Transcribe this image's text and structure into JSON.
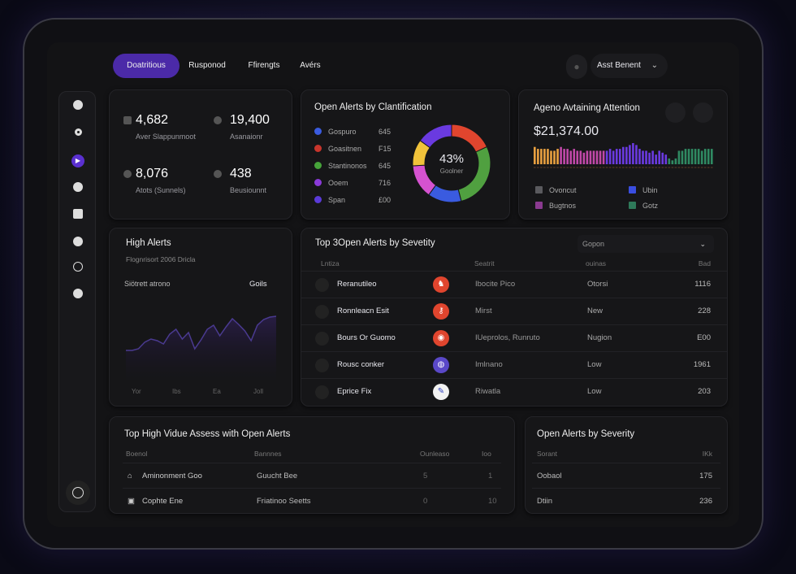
{
  "nav": {
    "tabs": [
      "Doatritious",
      "Rusponod",
      "Ffirengts",
      "Avérs"
    ],
    "active": 0,
    "user": "Asst Benent"
  },
  "stats": [
    {
      "value": "4,682",
      "label": "Aver Slappunmoot"
    },
    {
      "value": "19,400",
      "label": "Asanaionr"
    },
    {
      "value": "8,076",
      "label": "Atots (Sunnels)"
    },
    {
      "value": "438",
      "label": "Beusiounnt"
    }
  ],
  "classification": {
    "title": "Open Alerts by Clantification",
    "center_value": "43%",
    "center_label": "Goolner",
    "items": [
      {
        "label": "Gospuro",
        "value": "645",
        "color": "#3a5be0"
      },
      {
        "label": "Goasitnen",
        "value": "F15",
        "color": "#c8352c"
      },
      {
        "label": "Stantinonos",
        "value": "645",
        "color": "#46a33a"
      },
      {
        "label": "Ooem",
        "value": "716",
        "color": "#8a3ad8"
      },
      {
        "label": "Span",
        "value": "£00",
        "color": "#5a3ad8"
      }
    ],
    "segments": [
      {
        "color": "#e0452e",
        "pct": 18
      },
      {
        "color": "#50a040",
        "pct": 28
      },
      {
        "color": "#3a5be0",
        "pct": 14
      },
      {
        "color": "#d552d0",
        "pct": 14
      },
      {
        "color": "#f0c23a",
        "pct": 11
      },
      {
        "color": "#6a3ae0",
        "pct": 15
      }
    ]
  },
  "agents": {
    "title": "Ageno Avtaining Attention",
    "amount": "$21,374.00",
    "bars": [
      9,
      8,
      8,
      8,
      8,
      7,
      7,
      8,
      9,
      8,
      8,
      7,
      8,
      7,
      7,
      6,
      7,
      7,
      7,
      7,
      7,
      7,
      7,
      8,
      7,
      8,
      8,
      9,
      9,
      10,
      11,
      10,
      8,
      7,
      7,
      6,
      7,
      5,
      7,
      6,
      5,
      3,
      2,
      3,
      7,
      7,
      8,
      8,
      8,
      8,
      8,
      7,
      8,
      8,
      8
    ],
    "legend": [
      {
        "label": "Ovoncut",
        "color": "#5a5a5e"
      },
      {
        "label": "Ubin",
        "color": "#3a4ee0"
      },
      {
        "label": "Bugtnos",
        "color": "#8a3a90"
      },
      {
        "label": "Gotz",
        "color": "#2f7a5a"
      }
    ]
  },
  "high_alerts": {
    "title": "High Alerts",
    "subtitle": "Flognrisort 2006 Dricla",
    "left_label": "Siötrett atrono",
    "right_label": "Goils",
    "x_labels": [
      "Yor",
      "Ibs",
      "Ea",
      "Joll"
    ],
    "values": [
      3,
      3,
      3.2,
      4,
      4.4,
      4.2,
      3.8,
      5,
      5.6,
      4.4,
      5.2,
      3.2,
      4.3,
      5.6,
      6.1,
      4.8,
      5.9,
      6.9,
      6.2,
      5.4,
      4.2,
      6.1,
      6.8,
      7.1,
      7.2
    ]
  },
  "severity_table": {
    "title": "Top 3Open Alerts by Sevetity",
    "filter": "Gopon",
    "headers": [
      "Lntiza",
      "Seatrit",
      "ouinas",
      "Bad"
    ],
    "rows": [
      {
        "name": "Reranutileo",
        "icon_color": "#e0452e",
        "icon": "♞",
        "source": "Ibocite Pico",
        "status": "Otorsi",
        "count": "1116"
      },
      {
        "name": "Ronnleacn Esit",
        "icon_color": "#e0452e",
        "icon": "⚷",
        "source": "Mirst",
        "status": "New",
        "count": "228"
      },
      {
        "name": "Bours Or Guomo",
        "icon_color": "#e0452e",
        "icon": "◉",
        "source": "IUeprolos, Runruto",
        "status": "Nugion",
        "count": "E00"
      },
      {
        "name": "Rousc conker",
        "icon_color": "#5a48c8",
        "icon": "◍",
        "source": "Imlnano",
        "status": "Low",
        "count": "1961"
      },
      {
        "name": "Eprice Fix",
        "icon_color": "#f2f2f2",
        "icon": "✎",
        "source": "Riwatla",
        "status": "Low",
        "count": "203"
      }
    ]
  },
  "assets": {
    "title": "Top High Vidue Assess with Open Alerts",
    "headers": [
      "Boenol",
      "Bannnes",
      "Ounleaso",
      "Ioo"
    ],
    "rows": [
      {
        "name": "Aminonment Goo",
        "owner": "Guucht Bee",
        "a": "5",
        "b": "1"
      },
      {
        "name": "Cophte Ene",
        "owner": "Friatinoo Seetts",
        "a": "0",
        "b": "10"
      }
    ]
  },
  "by_severity": {
    "title": "Open Alerts by Severity",
    "headers": [
      "Sorant",
      "IKk"
    ],
    "rows": [
      {
        "label": "Oobaol",
        "value": "175"
      },
      {
        "label": "Dtiin",
        "value": "236"
      }
    ]
  }
}
